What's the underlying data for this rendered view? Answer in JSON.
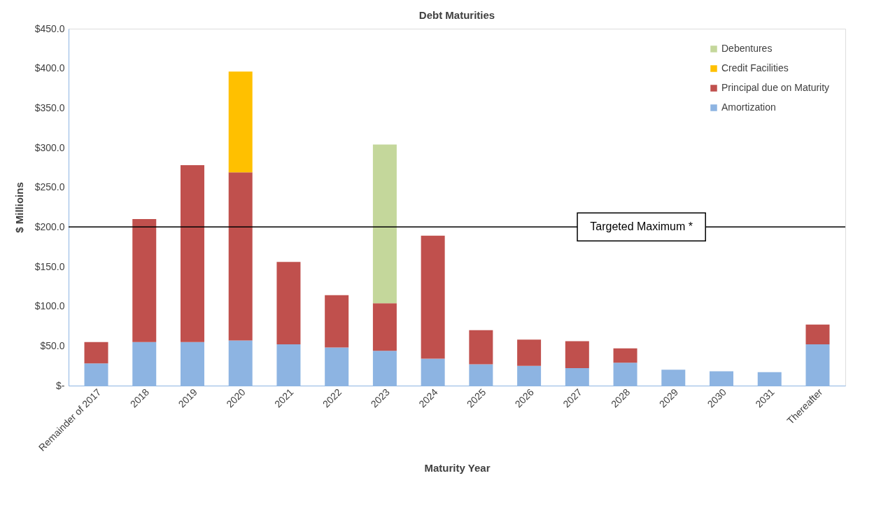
{
  "chart_data": {
    "type": "bar",
    "title": "Debt Maturities",
    "xlabel": "Maturity Year",
    "ylabel": "$ Millioins",
    "stacked": true,
    "categories": [
      "Remainder of 2017",
      "2018",
      "2019",
      "2020",
      "2021",
      "2022",
      "2023",
      "2024",
      "2025",
      "2026",
      "2027",
      "2028",
      "2029",
      "2030",
      "2031",
      "Thereafter"
    ],
    "series": [
      {
        "name": "Amortization",
        "color": "#8db4e2",
        "values": [
          28,
          55,
          55,
          57,
          52,
          48,
          44,
          34,
          27,
          25,
          22,
          29,
          20,
          18,
          17,
          52
        ]
      },
      {
        "name": "Principal due on Maturity",
        "color": "#c0504d",
        "values": [
          27,
          155,
          223,
          212,
          104,
          66,
          60,
          155,
          43,
          33,
          34,
          18,
          null,
          null,
          null,
          25
        ]
      },
      {
        "name": "Credit Facilities",
        "color": "#ffc000",
        "values": [
          null,
          null,
          null,
          127,
          null,
          null,
          null,
          null,
          null,
          null,
          null,
          null,
          null,
          null,
          null,
          null
        ]
      },
      {
        "name": "Debentures",
        "color": "#c4d79b",
        "values": [
          null,
          null,
          null,
          null,
          null,
          null,
          200,
          null,
          null,
          null,
          null,
          null,
          null,
          null,
          null,
          null
        ]
      }
    ],
    "ylim": [
      0,
      450
    ],
    "yticks": [
      {
        "value": 0,
        "label": "$-"
      },
      {
        "value": 50,
        "label": "$50.0"
      },
      {
        "value": 100,
        "label": "$100.0"
      },
      {
        "value": 150,
        "label": "$150.0"
      },
      {
        "value": 200,
        "label": "$200.0"
      },
      {
        "value": 250,
        "label": "$250.0"
      },
      {
        "value": 300,
        "label": "$300.0"
      },
      {
        "value": 350,
        "label": "$350.0"
      },
      {
        "value": 400,
        "label": "$400.0"
      },
      {
        "value": 450,
        "label": "$450.0"
      }
    ],
    "ref_lines": [
      {
        "axis": "y",
        "value": 200,
        "label": "Targeted Maximum *",
        "color": "#000000"
      }
    ],
    "grid": false,
    "legend": "top right"
  }
}
